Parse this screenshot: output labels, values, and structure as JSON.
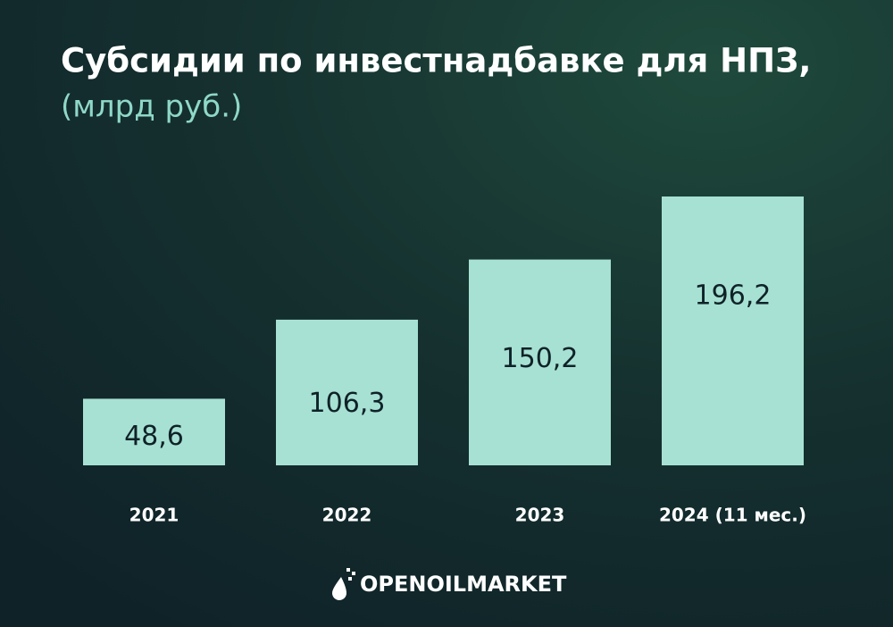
{
  "chart_data": {
    "type": "bar",
    "title": "Субсидии по инвестнадбавке для НПЗ,",
    "subtitle": "(млрд руб.)",
    "categories": [
      "2021",
      "2022",
      "2023",
      "2024 (11 мес.)"
    ],
    "values": [
      48.6,
      106.3,
      150.2,
      196.2
    ],
    "value_labels": [
      "48,6",
      "106,3",
      "150,2",
      "196,2"
    ],
    "color": "#a7e1d3",
    "source": "OPENOILMARKET"
  }
}
